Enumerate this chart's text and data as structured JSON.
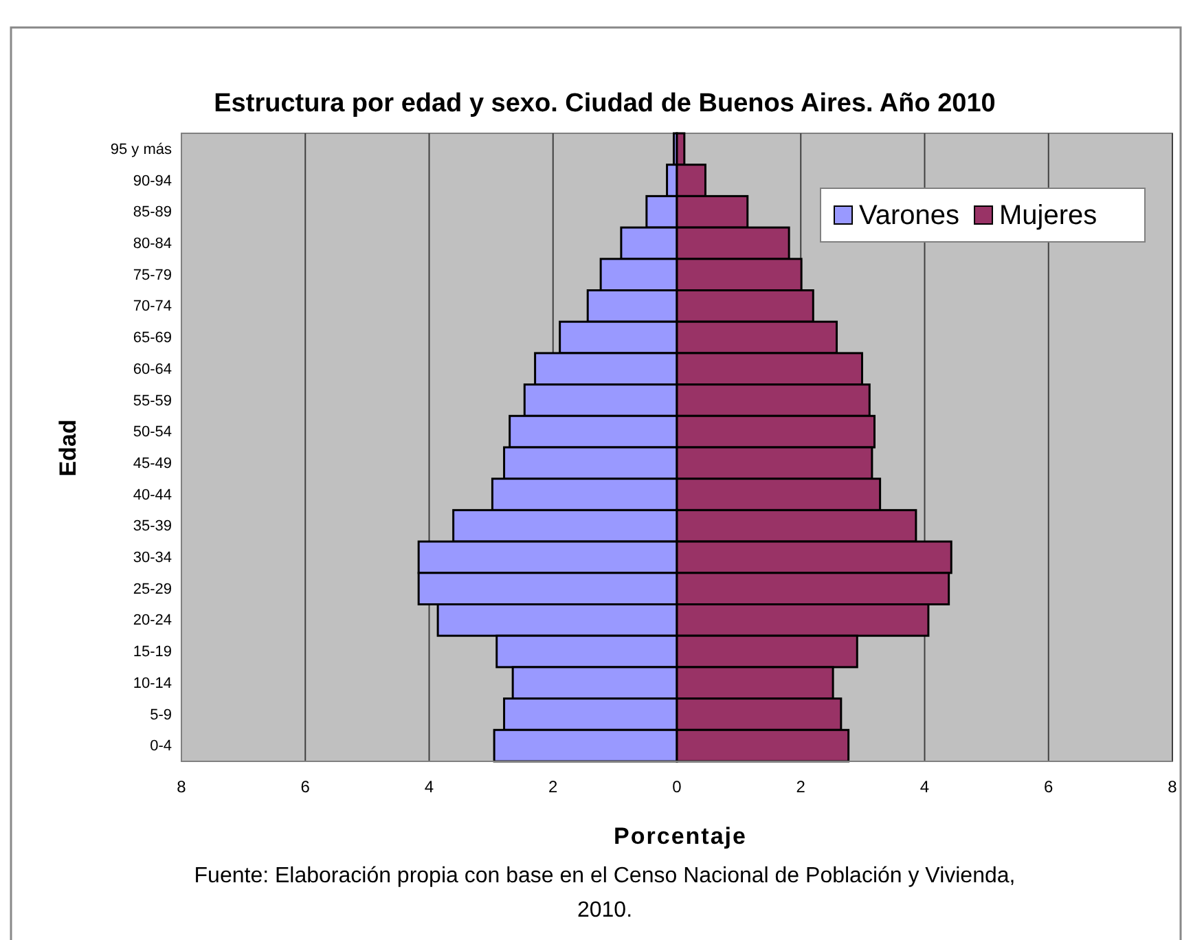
{
  "chart_data": {
    "type": "bar",
    "orientation": "horizontal",
    "stacked": true,
    "title": "Estructura por edad y sexo. Ciudad de Buenos Aires. Año 2010",
    "xlabel": "Porcentaje",
    "ylabel": "Edad",
    "categories": [
      "95 y más",
      "90-94",
      "85-89",
      "80-84",
      "75-79",
      "70-74",
      "65-69",
      "60-64",
      "55-59",
      "50-54",
      "45-49",
      "40-44",
      "35-39",
      "30-34",
      "25-29",
      "20-24",
      "15-19",
      "10-14",
      "5-9",
      "0-4"
    ],
    "series": [
      {
        "name": "Varones",
        "color": "#9999ff",
        "values": [
          -0.05,
          -0.16,
          -0.49,
          -0.9,
          -1.23,
          -1.44,
          -1.89,
          -2.29,
          -2.46,
          -2.7,
          -2.79,
          -2.98,
          -3.61,
          -4.17,
          -4.17,
          -3.86,
          -2.91,
          -2.65,
          -2.79,
          -2.95
        ]
      },
      {
        "name": "Mujeres",
        "color": "#993366",
        "values": [
          0.12,
          0.46,
          1.14,
          1.81,
          2.01,
          2.2,
          2.58,
          2.99,
          3.11,
          3.19,
          3.15,
          3.28,
          3.86,
          4.43,
          4.39,
          4.06,
          2.91,
          2.52,
          2.65,
          2.77
        ]
      }
    ],
    "xlim": [
      -8,
      8
    ],
    "xticks": [
      {
        "value": -8,
        "label": "8"
      },
      {
        "value": -6,
        "label": "6"
      },
      {
        "value": -4,
        "label": "4"
      },
      {
        "value": -2,
        "label": "2"
      },
      0,
      2,
      4,
      6,
      8
    ],
    "grid": "x",
    "legend": "top right",
    "annotations": [
      "Fuente: Elaboración propia con base en el Censo Nacional de Población y Vivienda, 2010."
    ]
  }
}
